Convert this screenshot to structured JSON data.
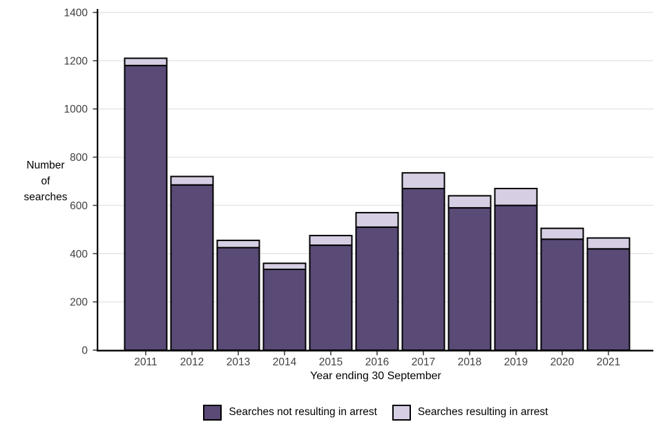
{
  "chart_data": {
    "type": "bar",
    "stacked": true,
    "categories": [
      "2011",
      "2012",
      "2013",
      "2014",
      "2015",
      "2016",
      "2017",
      "2018",
      "2019",
      "2020",
      "2021"
    ],
    "series": [
      {
        "name": "Searches not resulting in arrest",
        "color": "#594A76",
        "values": [
          1180,
          685,
          425,
          335,
          435,
          510,
          670,
          590,
          600,
          460,
          420
        ]
      },
      {
        "name": "Searches resulting in arrest",
        "color": "#D6CEE3",
        "values": [
          30,
          35,
          30,
          25,
          40,
          60,
          65,
          50,
          70,
          45,
          45
        ]
      }
    ],
    "title": "",
    "xlabel": "Year ending 30 September",
    "ylabel": "Number of searches",
    "ylabel_lines": [
      "Number",
      "of",
      "searches"
    ],
    "ylim": [
      0,
      1400
    ],
    "yticks": [
      0,
      200,
      400,
      600,
      800,
      1000,
      1200,
      1400
    ],
    "grid": true,
    "legend_position": "bottom",
    "bar_border_color": "#000000"
  },
  "colors": {
    "background": "#FFFFFF",
    "gridline": "#E6E6E6",
    "axis_line": "#000000",
    "tick_mark": "#333333",
    "tick_label": "#3F3F3F",
    "text": "#000000"
  }
}
